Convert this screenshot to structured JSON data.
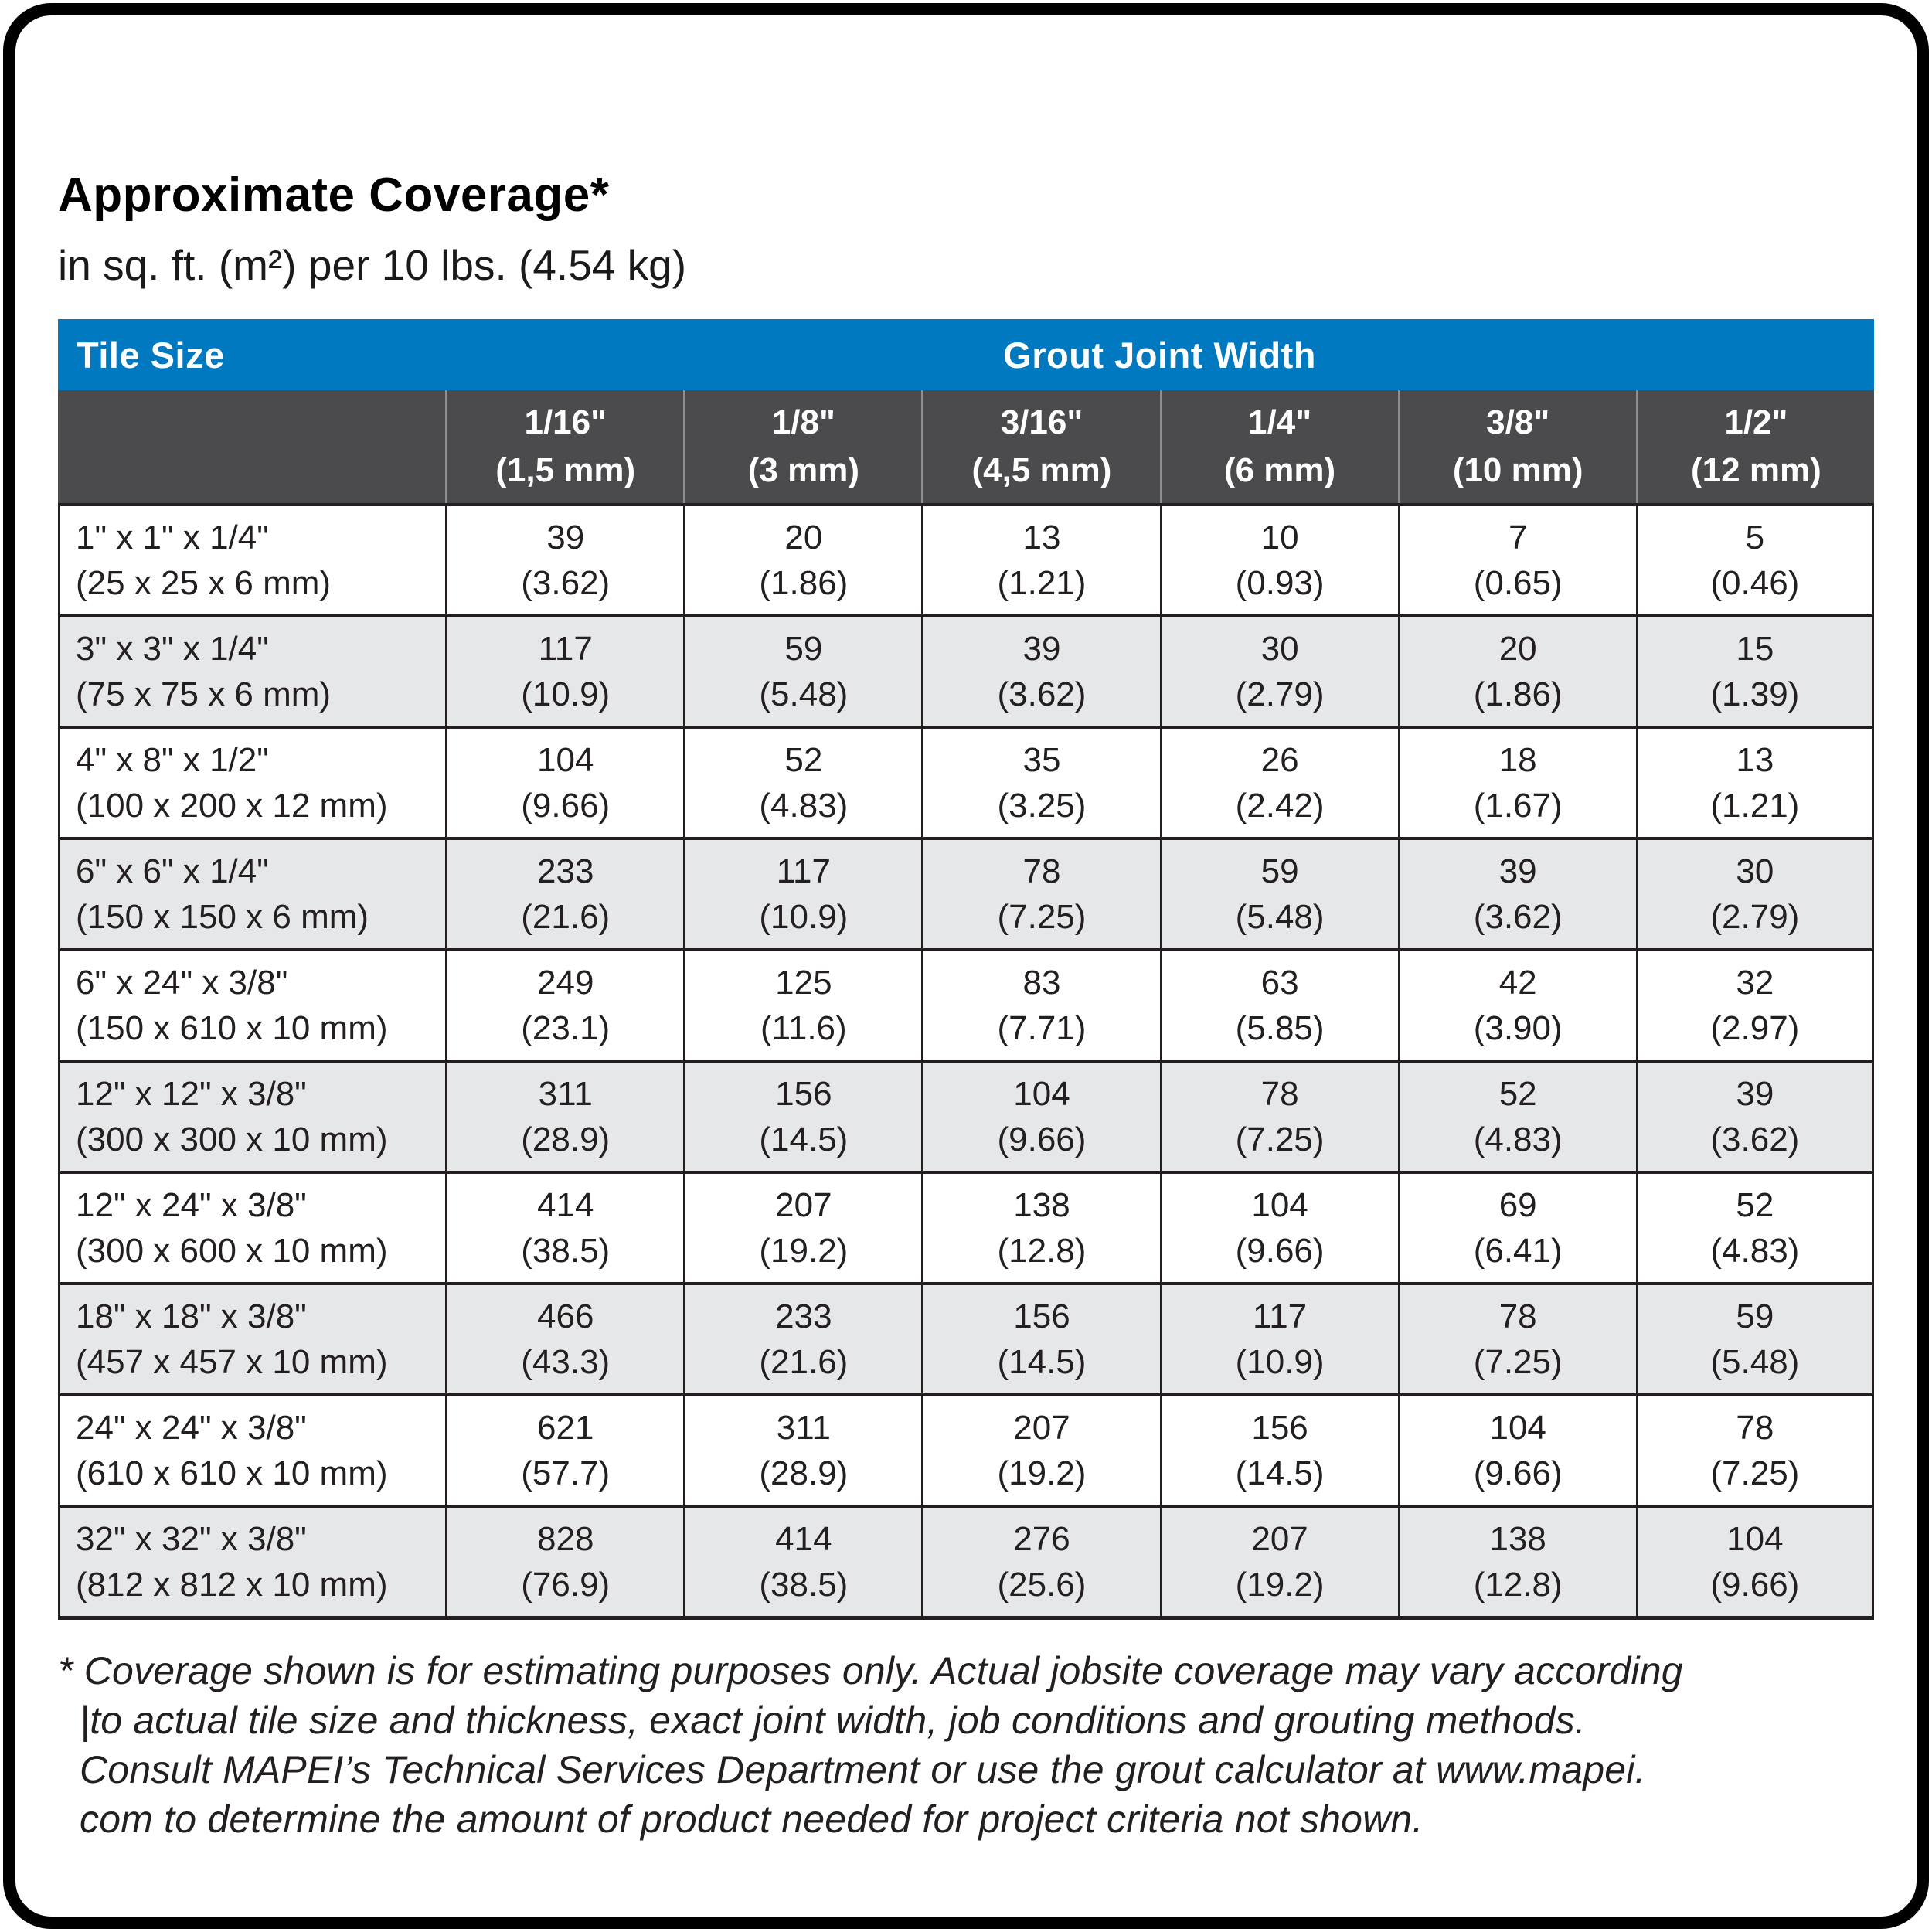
{
  "page": {
    "title": "Approximate Coverage*",
    "subtitle": "in sq. ft. (m²) per 10 lbs. (4.54 kg)"
  },
  "colors": {
    "header_blue": "#0079C1",
    "subheader_gray": "#4B4B4D",
    "row_alt_gray": "#E6E7E8",
    "text_dark": "#231F20"
  },
  "table": {
    "corner_label": "Tile Size",
    "group_header": "Grout Joint Width",
    "joint_widths": [
      {
        "inches": "1/16\"",
        "mm": "(1,5 mm)"
      },
      {
        "inches": "1/8\"",
        "mm": "(3 mm)"
      },
      {
        "inches": "3/16\"",
        "mm": "(4,5 mm)"
      },
      {
        "inches": "1/4\"",
        "mm": "(6 mm)"
      },
      {
        "inches": "3/8\"",
        "mm": "(10 mm)"
      },
      {
        "inches": "1/2\"",
        "mm": "(12 mm)"
      }
    ],
    "rows": [
      {
        "size": "1\" x 1\" x 1/4\"",
        "metric": "(25 x 25 x 6 mm)",
        "values": [
          [
            "39",
            "(3.62)"
          ],
          [
            "20",
            "(1.86)"
          ],
          [
            "13",
            "(1.21)"
          ],
          [
            "10",
            "(0.93)"
          ],
          [
            "7",
            "(0.65)"
          ],
          [
            "5",
            "(0.46)"
          ]
        ]
      },
      {
        "size": "3\" x 3\" x 1/4\"",
        "metric": "(75 x 75 x 6 mm)",
        "values": [
          [
            "117",
            "(10.9)"
          ],
          [
            "59",
            "(5.48)"
          ],
          [
            "39",
            "(3.62)"
          ],
          [
            "30",
            "(2.79)"
          ],
          [
            "20",
            "(1.86)"
          ],
          [
            "15",
            "(1.39)"
          ]
        ]
      },
      {
        "size": "4\" x 8\" x 1/2\"",
        "metric": "(100 x 200 x 12 mm)",
        "values": [
          [
            "104",
            "(9.66)"
          ],
          [
            "52",
            "(4.83)"
          ],
          [
            "35",
            "(3.25)"
          ],
          [
            "26",
            "(2.42)"
          ],
          [
            "18",
            "(1.67)"
          ],
          [
            "13",
            "(1.21)"
          ]
        ]
      },
      {
        "size": "6\" x 6\" x 1/4\"",
        "metric": "(150 x 150 x 6 mm)",
        "values": [
          [
            "233",
            "(21.6)"
          ],
          [
            "117",
            "(10.9)"
          ],
          [
            "78",
            "(7.25)"
          ],
          [
            "59",
            "(5.48)"
          ],
          [
            "39",
            "(3.62)"
          ],
          [
            "30",
            "(2.79)"
          ]
        ]
      },
      {
        "size": "6\" x 24\" x 3/8\"",
        "metric": "(150 x 610 x 10 mm)",
        "values": [
          [
            "249",
            "(23.1)"
          ],
          [
            "125",
            "(11.6)"
          ],
          [
            "83",
            "(7.71)"
          ],
          [
            "63",
            "(5.85)"
          ],
          [
            "42",
            "(3.90)"
          ],
          [
            "32",
            "(2.97)"
          ]
        ]
      },
      {
        "size": "12\" x 12\" x 3/8\"",
        "metric": "(300 x 300 x 10 mm)",
        "values": [
          [
            "311",
            "(28.9)"
          ],
          [
            "156",
            "(14.5)"
          ],
          [
            "104",
            "(9.66)"
          ],
          [
            "78",
            "(7.25)"
          ],
          [
            "52",
            "(4.83)"
          ],
          [
            "39",
            "(3.62)"
          ]
        ]
      },
      {
        "size": "12\" x 24\" x 3/8\"",
        "metric": "(300 x 600 x 10 mm)",
        "values": [
          [
            "414",
            "(38.5)"
          ],
          [
            "207",
            "(19.2)"
          ],
          [
            "138",
            "(12.8)"
          ],
          [
            "104",
            "(9.66)"
          ],
          [
            "69",
            "(6.41)"
          ],
          [
            "52",
            "(4.83)"
          ]
        ]
      },
      {
        "size": "18\" x 18\" x 3/8\"",
        "metric": "(457 x 457 x 10 mm)",
        "values": [
          [
            "466",
            "(43.3)"
          ],
          [
            "233",
            "(21.6)"
          ],
          [
            "156",
            "(14.5)"
          ],
          [
            "117",
            "(10.9)"
          ],
          [
            "78",
            "(7.25)"
          ],
          [
            "59",
            "(5.48)"
          ]
        ]
      },
      {
        "size": "24\" x 24\" x 3/8\"",
        "metric": "(610 x 610 x 10 mm)",
        "values": [
          [
            "621",
            "(57.7)"
          ],
          [
            "311",
            "(28.9)"
          ],
          [
            "207",
            "(19.2)"
          ],
          [
            "156",
            "(14.5)"
          ],
          [
            "104",
            "(9.66)"
          ],
          [
            "78",
            "(7.25)"
          ]
        ]
      },
      {
        "size": "32\" x 32\" x 3/8\"",
        "metric": "(812 x 812 x 10 mm)",
        "values": [
          [
            "828",
            "(76.9)"
          ],
          [
            "414",
            "(38.5)"
          ],
          [
            "276",
            "(25.6)"
          ],
          [
            "207",
            "(19.2)"
          ],
          [
            "138",
            "(12.8)"
          ],
          [
            "104",
            "(9.66)"
          ]
        ]
      }
    ]
  },
  "footnote": {
    "lines": [
      "* Coverage shown is for estimating purposes only. Actual jobsite coverage may vary according",
      "|to actual tile size and thickness, exact joint width, job conditions and grouting methods.",
      "Consult MAPEI’s Technical Services Department or use the grout calculator at www.mapei.",
      "com to determine the amount of product needed for project criteria not shown."
    ]
  }
}
